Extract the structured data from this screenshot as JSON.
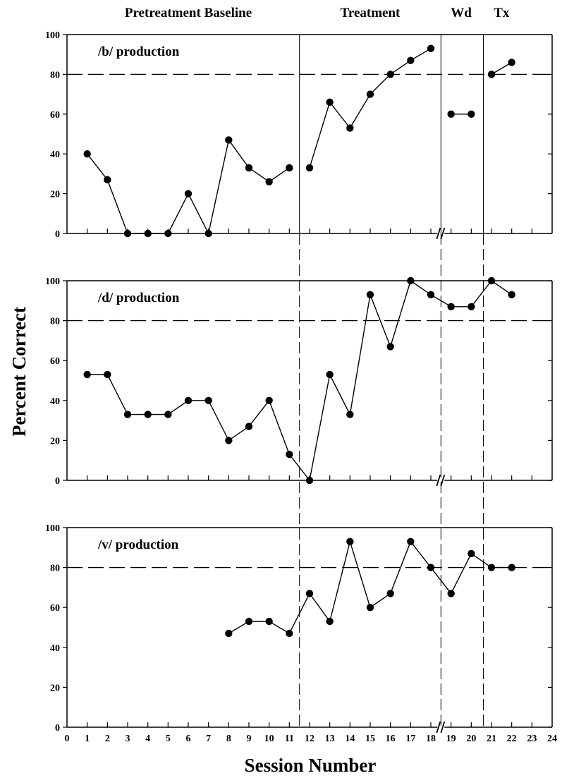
{
  "chart_data": {
    "type": "line",
    "xlabel": "Session Number",
    "ylabel": "Percent Correct",
    "xlim": [
      0,
      24
    ],
    "x_ticks": [
      0,
      1,
      2,
      3,
      4,
      5,
      6,
      7,
      8,
      9,
      10,
      11,
      12,
      13,
      14,
      15,
      16,
      17,
      18,
      19,
      20,
      21,
      22,
      23,
      24
    ],
    "ylim": [
      0,
      100
    ],
    "y_ticks": [
      0,
      20,
      40,
      60,
      80,
      100
    ],
    "criterion_line": 80,
    "axis_break_between_sessions": [
      18,
      19
    ],
    "phases": [
      {
        "label": "Pretreatment Baseline",
        "sessions": [
          1,
          11
        ]
      },
      {
        "label": "Treatment",
        "sessions": [
          12,
          18
        ]
      },
      {
        "label": "Wd",
        "sessions": [
          19,
          20
        ]
      },
      {
        "label": "Tx",
        "sessions": [
          21,
          22
        ]
      }
    ],
    "phase_boundaries": [
      11.5,
      18.5,
      20.6
    ],
    "panels": [
      {
        "title": "/b/ production",
        "segments": [
          [
            [
              1,
              40
            ],
            [
              2,
              27
            ],
            [
              3,
              0
            ],
            [
              4,
              0
            ],
            [
              5,
              0
            ],
            [
              6,
              20
            ],
            [
              7,
              0
            ],
            [
              8,
              47
            ],
            [
              9,
              33
            ],
            [
              10,
              26
            ],
            [
              11,
              33
            ]
          ],
          [
            [
              12,
              33
            ],
            [
              13,
              66
            ],
            [
              14,
              53
            ],
            [
              15,
              70
            ],
            [
              16,
              80
            ],
            [
              17,
              87
            ],
            [
              18,
              93
            ]
          ],
          [
            [
              19,
              60
            ],
            [
              20,
              60
            ]
          ],
          [
            [
              21,
              80
            ],
            [
              22,
              86
            ]
          ]
        ]
      },
      {
        "title": "/d/ production",
        "segments": [
          [
            [
              1,
              53
            ],
            [
              2,
              53
            ],
            [
              3,
              33
            ],
            [
              4,
              33
            ],
            [
              5,
              33
            ],
            [
              6,
              40
            ],
            [
              7,
              40
            ],
            [
              8,
              20
            ],
            [
              9,
              27
            ],
            [
              10,
              40
            ],
            [
              11,
              13
            ],
            [
              12,
              0
            ],
            [
              13,
              53
            ],
            [
              14,
              33
            ],
            [
              15,
              93
            ],
            [
              16,
              67
            ],
            [
              17,
              100
            ],
            [
              18,
              93
            ],
            [
              19,
              87
            ],
            [
              20,
              87
            ],
            [
              21,
              100
            ],
            [
              22,
              93
            ]
          ]
        ]
      },
      {
        "title": "/v/ production",
        "segments": [
          [
            [
              8,
              47
            ],
            [
              9,
              53
            ],
            [
              10,
              53
            ],
            [
              11,
              47
            ],
            [
              12,
              67
            ],
            [
              13,
              53
            ],
            [
              14,
              93
            ],
            [
              15,
              60
            ],
            [
              16,
              67
            ],
            [
              17,
              93
            ],
            [
              18,
              80
            ],
            [
              19,
              67
            ],
            [
              20,
              87
            ],
            [
              21,
              80
            ],
            [
              22,
              80
            ]
          ]
        ]
      }
    ]
  }
}
